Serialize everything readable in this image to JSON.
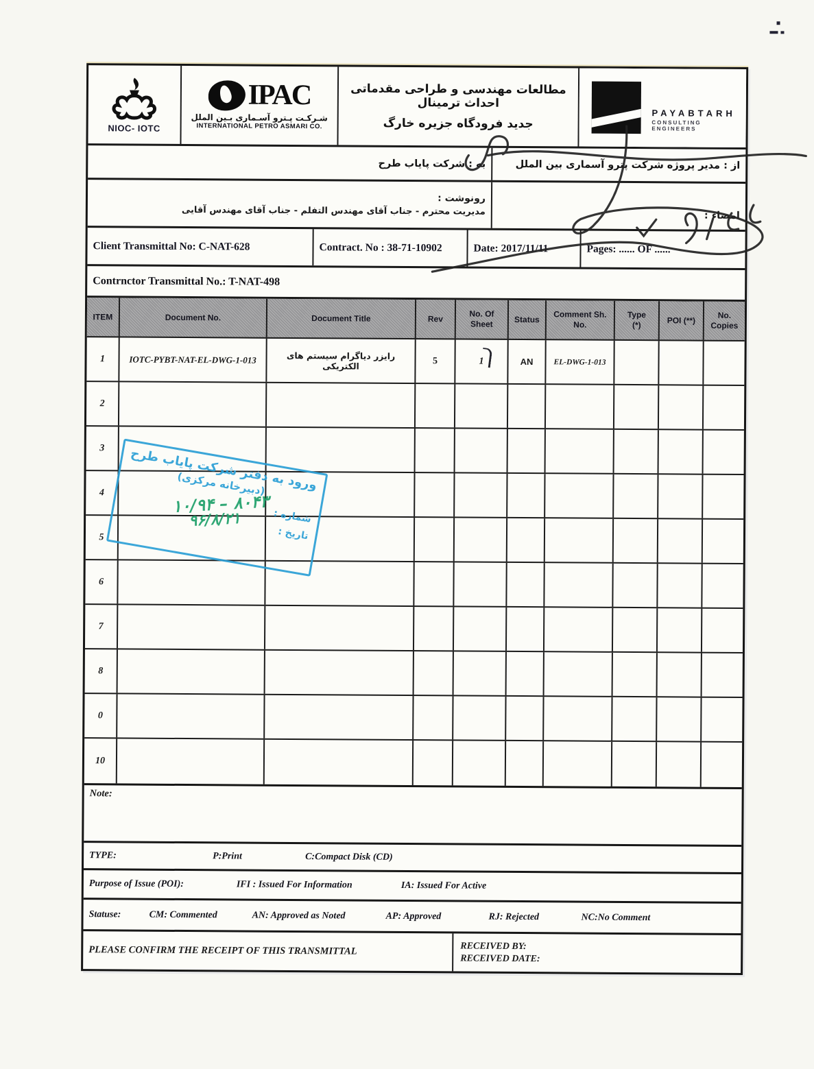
{
  "colors": {
    "stamp_blue": "#2b9fd6",
    "hand_green": "#1fa06a",
    "ink": "#1b1b1b",
    "table_header_gray": "#a3a3a3"
  },
  "header": {
    "nioc": {
      "label": "NIOC- IOTC"
    },
    "ipac": {
      "acronym": "IPAC",
      "fa": "شـرکـت پـترو آسـماری بـین الملل",
      "en": "INTERNATIONAL PETRO ASMARI CO."
    },
    "project_title_fa": {
      "line1": "مطالعات مهندسی و طراحی مقدماتی احداث ترمینال",
      "line2": "جدید فرودگاه جزیره خارگ"
    },
    "payabtarh": {
      "name": "PAYABTARH",
      "tagline": "CONSULTING ENGINEERS"
    }
  },
  "addressing": {
    "from": "از : مدیر پروژه شرکت پترو آسماری بین الملل",
    "to": "به : شرکت پایاب طرح",
    "copy_label": "رونوشت :",
    "copy_value": "مدیریت محترم - جناب آقای مهندس التفلم - جناب آقای مهندس آقایی",
    "signature_label": "امضاء :"
  },
  "transmittal": {
    "client_no": "Client  Transmittal  No: C-NAT-628",
    "contract_no": "Contract. No : 38-71-10902",
    "date": "Date: 2017/11/11",
    "pages": "Pages: ......    OF ......",
    "contractor_no": "Contrnctor Transmittal No.:  T-NAT-498"
  },
  "table": {
    "headers": [
      "ITEM",
      "Document No.",
      "Document Title",
      "Rev",
      "No. Of\nSheet",
      "Status",
      "Comment Sh.\nNo.",
      "Type\n(*)",
      "POI  (**)",
      "No.\nCopies"
    ],
    "fields": [
      "item",
      "doc_no",
      "title",
      "rev",
      "sheets",
      "status",
      "comment_sh_no",
      "type",
      "poi",
      "copies"
    ],
    "rows": [
      {
        "item": "1",
        "doc_no": "IOTC-PYBT-NAT-EL-DWG-1-013",
        "title": "رایزر دیاگرام سیستم های الکتریکی",
        "rev": "5",
        "sheets": "1",
        "status": "AN",
        "comment_sh_no": "EL-DWG-1-013",
        "type": "",
        "poi": "",
        "copies": ""
      },
      {
        "item": "2",
        "doc_no": "",
        "title": "",
        "rev": "",
        "sheets": "",
        "status": "",
        "comment_sh_no": "",
        "type": "",
        "poi": "",
        "copies": ""
      },
      {
        "item": "3",
        "doc_no": "",
        "title": "",
        "rev": "",
        "sheets": "",
        "status": "",
        "comment_sh_no": "",
        "type": "",
        "poi": "",
        "copies": ""
      },
      {
        "item": "4",
        "doc_no": "",
        "title": "",
        "rev": "",
        "sheets": "",
        "status": "",
        "comment_sh_no": "",
        "type": "",
        "poi": "",
        "copies": ""
      },
      {
        "item": "5",
        "doc_no": "",
        "title": "",
        "rev": "",
        "sheets": "",
        "status": "",
        "comment_sh_no": "",
        "type": "",
        "poi": "",
        "copies": ""
      },
      {
        "item": "6",
        "doc_no": "",
        "title": "",
        "rev": "",
        "sheets": "",
        "status": "",
        "comment_sh_no": "",
        "type": "",
        "poi": "",
        "copies": ""
      },
      {
        "item": "7",
        "doc_no": "",
        "title": "",
        "rev": "",
        "sheets": "",
        "status": "",
        "comment_sh_no": "",
        "type": "",
        "poi": "",
        "copies": ""
      },
      {
        "item": "8",
        "doc_no": "",
        "title": "",
        "rev": "",
        "sheets": "",
        "status": "",
        "comment_sh_no": "",
        "type": "",
        "poi": "",
        "copies": ""
      },
      {
        "item": "0",
        "doc_no": "",
        "title": "",
        "rev": "",
        "sheets": "",
        "status": "",
        "comment_sh_no": "",
        "type": "",
        "poi": "",
        "copies": ""
      },
      {
        "item": "10",
        "doc_no": "",
        "title": "",
        "rev": "",
        "sheets": "",
        "status": "",
        "comment_sh_no": "",
        "type": "",
        "poi": "",
        "copies": ""
      }
    ]
  },
  "stamp": {
    "line1": "ورود به دفتر شرکت پایاب طرح",
    "line2": "(دبیرخانه مرکزی)",
    "number_label": "شماره :",
    "number_value": "۸۰۴۳ – ۱۰/۹۴",
    "date_label": "تاریخ :",
    "date_value": "۹۶/۸/۲۱"
  },
  "footer": {
    "note_label": "Note:",
    "type_row": {
      "label": "TYPE:",
      "p": "P:Print",
      "c": "C:Compact Disk (CD)"
    },
    "poi_row": {
      "label": "Purpose of  Issue (POI):",
      "ifi": "IFI : Issued For Information",
      "ia": "IA: Issued For Active"
    },
    "status_row": {
      "label": "Statuse:",
      "cm": "CM: Commented",
      "an": "AN: Approved as Noted",
      "ap": "AP: Approved",
      "rj": "RJ: Rejected",
      "nc": "NC:No Comment"
    },
    "confirm": "PLEASE CONFIRM THE RECEIPT OF THIS TRANSMITTAL",
    "received_by": "RECEIVED BY:",
    "received_date": "RECEIVED DATE:"
  }
}
